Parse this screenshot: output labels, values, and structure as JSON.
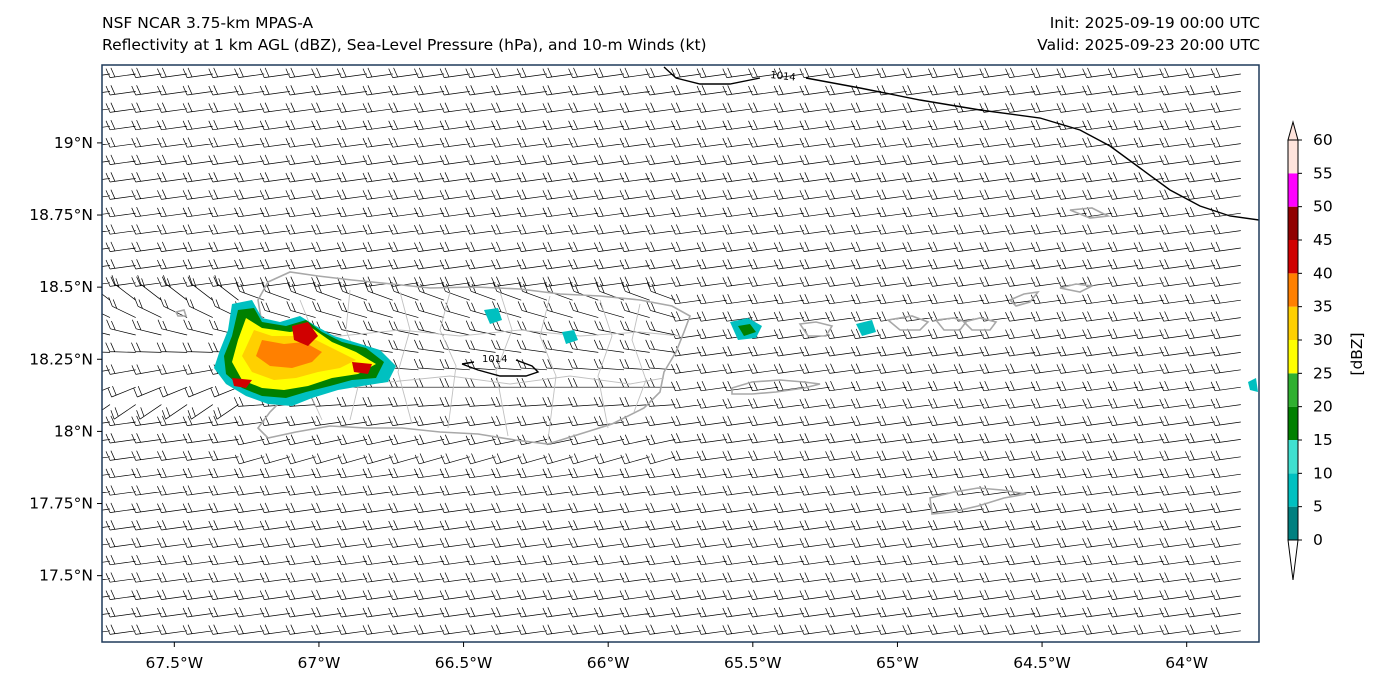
{
  "header": {
    "model": "NSF NCAR 3.75-km MPAS-A",
    "fields": "Reflectivity at 1 km AGL (dBZ), Sea-Level Pressure (hPa), and 10-m Winds (kt)",
    "init": "Init: 2025-09-19 00:00 UTC",
    "valid": "Valid: 2025-09-23 20:00 UTC"
  },
  "map": {
    "lon_range": [
      -67.75,
      -63.75
    ],
    "lat_range": [
      17.27,
      19.27
    ],
    "lon_ticks": [
      {
        "value": -67.5,
        "label": "67.5°W"
      },
      {
        "value": -67.0,
        "label": "67°W"
      },
      {
        "value": -66.5,
        "label": "66.5°W"
      },
      {
        "value": -66.0,
        "label": "66°W"
      },
      {
        "value": -65.5,
        "label": "65.5°W"
      },
      {
        "value": -65.0,
        "label": "65°W"
      },
      {
        "value": -64.5,
        "label": "64.5°W"
      },
      {
        "value": -64.0,
        "label": "64°W"
      }
    ],
    "lat_ticks": [
      {
        "value": 19.0,
        "label": "19°N"
      },
      {
        "value": 18.75,
        "label": "18.75°N"
      },
      {
        "value": 18.5,
        "label": "18.5°N"
      },
      {
        "value": 18.25,
        "label": "18.25°N"
      },
      {
        "value": 18.0,
        "label": "18°N"
      },
      {
        "value": 17.75,
        "label": "17.75°N"
      },
      {
        "value": 17.5,
        "label": "17.5°N"
      }
    ],
    "pressure_contours": [
      {
        "label": "1014"
      },
      {
        "label": "1014"
      }
    ],
    "colors": {
      "coastline": "#a8a8a8",
      "barb": "#000000",
      "frame": "#1f3a5a",
      "contour": "#000000"
    }
  },
  "colorbar": {
    "unit_label": "[dBZ]",
    "levels": [
      0,
      5,
      10,
      15,
      20,
      25,
      30,
      35,
      40,
      45,
      50,
      55,
      60
    ],
    "tick_labels": [
      "0",
      "5",
      "10",
      "15",
      "20",
      "25",
      "30",
      "35",
      "40",
      "45",
      "50",
      "55",
      "60"
    ],
    "colors": [
      "#008080",
      "#00c0c0",
      "#40e0d0",
      "#008000",
      "#30b030",
      "#ffff00",
      "#ffd000",
      "#ff8000",
      "#d00000",
      "#900000",
      "#ff00ff",
      "#ffe4dc"
    ],
    "under_color": "#ffffff",
    "over_color": "#ffe4dc"
  }
}
